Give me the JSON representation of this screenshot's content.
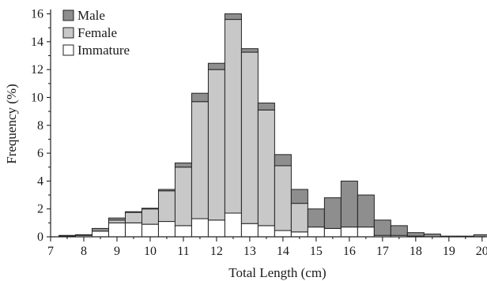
{
  "chart_data": {
    "type": "bar",
    "stacked": true,
    "xlabel": "Total Length (cm)",
    "ylabel": "Frequency (%)",
    "xlim": [
      7,
      20.1
    ],
    "ylim": [
      0,
      16.2
    ],
    "bin_width": 0.5,
    "x_ticks": [
      "7",
      "8",
      "9",
      "10",
      "11",
      "12",
      "13",
      "14",
      "15",
      "16",
      "17",
      "18",
      "19",
      "20"
    ],
    "x_tick_values": [
      7,
      8,
      9,
      10,
      11,
      12,
      13,
      14,
      15,
      16,
      17,
      18,
      19,
      20
    ],
    "y_ticks": [
      "0",
      "2",
      "4",
      "6",
      "8",
      "10",
      "12",
      "14",
      "16"
    ],
    "y_tick_values": [
      0,
      2,
      4,
      6,
      8,
      10,
      12,
      14,
      16
    ],
    "bin_starts": [
      7.25,
      7.75,
      8.25,
      8.75,
      9.25,
      9.75,
      10.25,
      10.75,
      11.25,
      11.75,
      12.25,
      12.75,
      13.25,
      13.75,
      14.25,
      14.75,
      15.25,
      15.75,
      16.25,
      16.75,
      17.25,
      17.75,
      18.25,
      18.75,
      19.25,
      19.75
    ],
    "series": [
      {
        "name": "Immature",
        "color": "#ffffff",
        "values": [
          0.05,
          0.1,
          0.4,
          1.0,
          1.0,
          0.9,
          1.1,
          0.8,
          1.3,
          1.2,
          1.7,
          0.95,
          0.8,
          0.45,
          0.35,
          0.7,
          0.6,
          0.7,
          0.7,
          0.1,
          0.1,
          0.05,
          0,
          0,
          0,
          0
        ]
      },
      {
        "name": "Female",
        "color": "#c8c8c8",
        "values": [
          0,
          0,
          0,
          0.2,
          0.75,
          1.1,
          2.2,
          4.2,
          8.4,
          10.8,
          13.9,
          12.3,
          8.3,
          4.65,
          2.05,
          0,
          0,
          0,
          0,
          0,
          0,
          0,
          0,
          0,
          0,
          0
        ]
      },
      {
        "name": "Male",
        "color": "#8e8e8e",
        "values": [
          0.05,
          0.05,
          0.2,
          0.15,
          0.05,
          0.05,
          0.1,
          0.3,
          0.6,
          0.45,
          0.4,
          0.25,
          0.5,
          0.8,
          1.0,
          1.3,
          2.2,
          3.3,
          2.3,
          1.1,
          0.7,
          0.25,
          0.2,
          0.05,
          0.05,
          0.15
        ]
      }
    ],
    "legend": {
      "placement": "top-left",
      "order": [
        "Male",
        "Female",
        "Immature"
      ]
    }
  }
}
